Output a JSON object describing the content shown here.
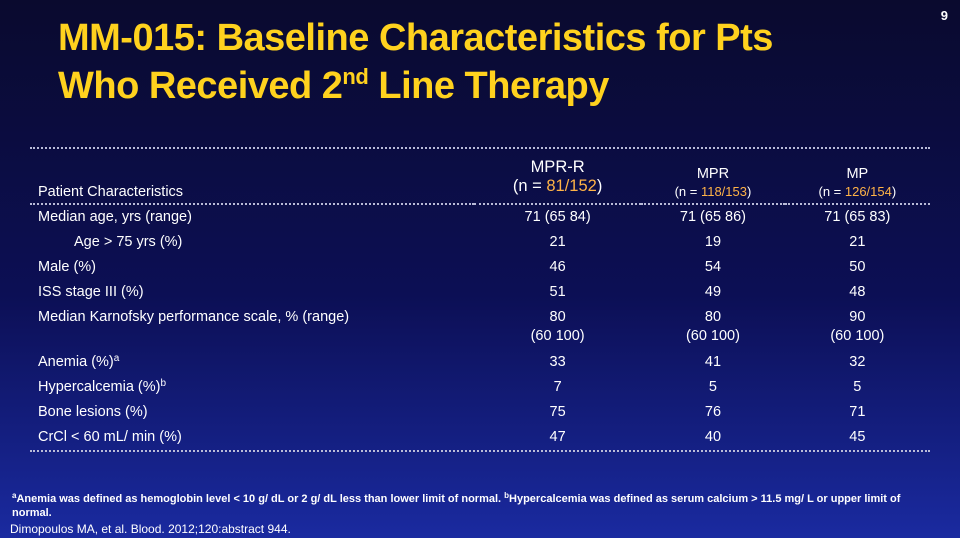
{
  "page_number": "9",
  "title": {
    "line1": "MM-015: Baseline Characteristics for Pts",
    "line2_pre": "Who Received 2",
    "line2_sup": "nd",
    "line2_post": " Line Therapy"
  },
  "table": {
    "header": {
      "characteristics": "Patient Characteristics",
      "mpr_r": {
        "name": "MPR-R",
        "n_pre": "(n = ",
        "n_val": "81/152",
        "n_post": ")"
      },
      "mpr": {
        "name": "MPR",
        "n_pre": "(n = ",
        "n_val": "118/153",
        "n_post": ")"
      },
      "mp": {
        "name": "MP",
        "n_pre": "(n = ",
        "n_val": "126/154",
        "n_post": ")"
      }
    },
    "rows": [
      {
        "label": "Median age, yrs (range)",
        "mpr_r": "71 (65 84)",
        "mpr": "71 (65 86)",
        "mp": "71 (65 83)"
      },
      {
        "label": "Age > 75 yrs (%)",
        "mpr_r": "21",
        "mpr": "19",
        "mp": "21"
      },
      {
        "label": "Male (%)",
        "mpr_r": "46",
        "mpr": "54",
        "mp": "50"
      },
      {
        "label": "ISS stage III (%)",
        "mpr_r": "51",
        "mpr": "49",
        "mp": "48"
      },
      {
        "label": "Median Karnofsky performance scale, % (range)",
        "mpr_r": "80",
        "mpr_r_range": "(60 100)",
        "mpr": "80",
        "mpr_range": "(60 100)",
        "mp": "90",
        "mp_range": "(60 100)"
      },
      {
        "label": "Anemia (%)",
        "sup": "a",
        "mpr_r": "33",
        "mpr": "41",
        "mp": "32"
      },
      {
        "label": "Hypercalcemia (%)",
        "sup": "b",
        "mpr_r": "7",
        "mpr": "5",
        "mp": "5"
      },
      {
        "label": "Bone lesions (%)",
        "mpr_r": "75",
        "mpr": "76",
        "mp": "71"
      },
      {
        "label": "CrCl < 60 mL/ min (%)",
        "mpr_r": "47",
        "mpr": "40",
        "mp": "45"
      }
    ]
  },
  "footnote": {
    "a_sup": "a",
    "a_text": "Anemia was defined as hemoglobin level < 10 g/ dL or 2 g/ dL less than lower limit of normal. ",
    "b_sup": "b",
    "b_text": "Hypercalcemia was defined as serum calcium > 11.5 mg/ L or upper limit of normal."
  },
  "reference": "Dimopoulos MA, et al. Blood. 2012;120:abstract 944.",
  "colors": {
    "title": "#ffd21e",
    "highlight": "#ffb347",
    "background_top": "#0a0a2e",
    "background_bottom": "#1a2aa0"
  }
}
